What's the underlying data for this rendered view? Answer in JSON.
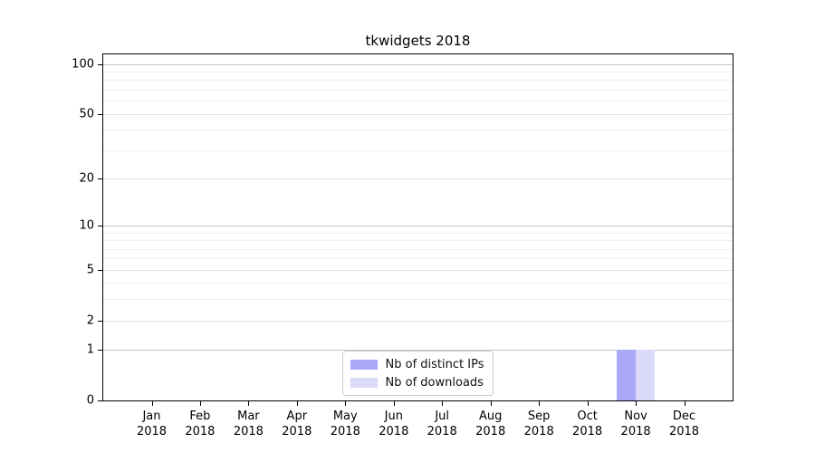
{
  "figure": {
    "background": "#ffffff"
  },
  "chart_data": {
    "type": "bar",
    "title": "tkwidgets 2018",
    "x": {
      "categories": [
        "Jan",
        "Feb",
        "Mar",
        "Apr",
        "May",
        "Jun",
        "Jul",
        "Aug",
        "Sep",
        "Oct",
        "Nov",
        "Dec"
      ],
      "year_label": "2018"
    },
    "series": [
      {
        "name": "Nb of distinct IPs",
        "color": "#a9a9f8",
        "values": [
          0,
          0,
          0,
          0,
          0,
          0,
          0,
          0,
          0,
          0,
          1,
          0
        ]
      },
      {
        "name": "Nb of downloads",
        "color": "#dadaf8",
        "values": [
          0,
          0,
          0,
          0,
          0,
          0,
          0,
          0,
          0,
          0,
          1,
          0
        ]
      }
    ],
    "y_axis": {
      "scale": "log1p",
      "min": 0,
      "max": 114,
      "major_ticks": [
        0,
        1,
        2,
        5,
        10,
        20,
        50,
        100
      ],
      "strong_gridlines": [
        1,
        10,
        100
      ],
      "minor_gridlines": [
        3,
        4,
        6,
        7,
        8,
        9,
        30,
        40,
        60,
        70,
        80,
        90
      ]
    },
    "grid": {
      "strong_color": "#c6c6c6",
      "mid_color": "#e2e2e2",
      "minor_color": "#f0f0f0"
    },
    "legend": {
      "position": "lower center"
    },
    "axis_color": "#000000"
  }
}
